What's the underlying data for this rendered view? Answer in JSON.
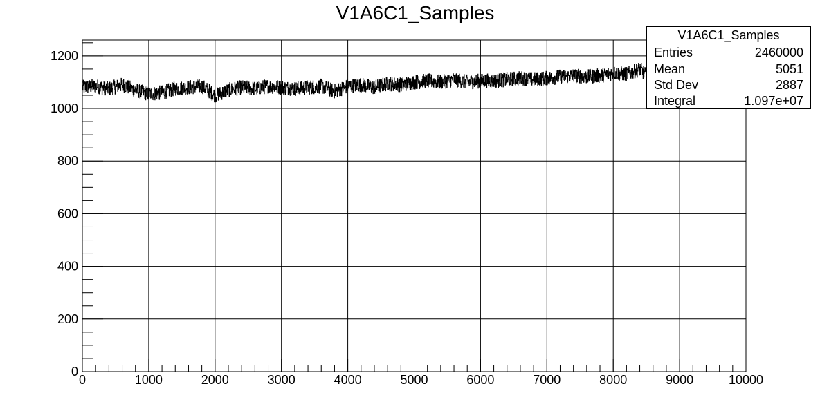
{
  "chart_data": {
    "type": "histogram",
    "title": "V1A6C1_Samples",
    "xlabel": "",
    "ylabel": "",
    "xlim": [
      0,
      10000
    ],
    "ylim": [
      0,
      1260
    ],
    "x_ticks": [
      0,
      1000,
      2000,
      3000,
      4000,
      5000,
      6000,
      7000,
      8000,
      9000,
      10000
    ],
    "y_ticks": [
      0,
      200,
      400,
      600,
      800,
      1000,
      1200
    ],
    "grid": true,
    "line_color": "#000000",
    "series": [
      {
        "x": [
          0,
          200,
          400,
          600,
          800,
          1000,
          1200,
          1400,
          1600,
          1800,
          2000,
          2200,
          2400,
          2600,
          2800,
          3000,
          3200,
          3400,
          3600,
          3800,
          4000,
          4200,
          4400,
          4600,
          4800,
          5000,
          5200,
          5400,
          5600,
          5800,
          6000,
          6200,
          6400,
          6600,
          6800,
          7000,
          7200,
          7400,
          7600,
          7800,
          8000,
          8200,
          8400,
          8600
        ],
        "values": [
          1080,
          1085,
          1075,
          1090,
          1070,
          1055,
          1060,
          1075,
          1080,
          1085,
          1050,
          1070,
          1080,
          1075,
          1085,
          1080,
          1075,
          1080,
          1085,
          1065,
          1085,
          1090,
          1080,
          1095,
          1090,
          1100,
          1105,
          1100,
          1110,
          1100,
          1105,
          1105,
          1110,
          1115,
          1110,
          1115,
          1120,
          1125,
          1120,
          1125,
          1135,
          1130,
          1150,
          1100
        ]
      }
    ]
  },
  "stats": {
    "title": "V1A6C1_Samples",
    "rows": [
      {
        "label": "Entries",
        "value": "2460000"
      },
      {
        "label": "Mean",
        "value": "5051"
      },
      {
        "label": "Std Dev",
        "value": "2887"
      },
      {
        "label": "Integral",
        "value": "1.097e+07"
      }
    ]
  }
}
